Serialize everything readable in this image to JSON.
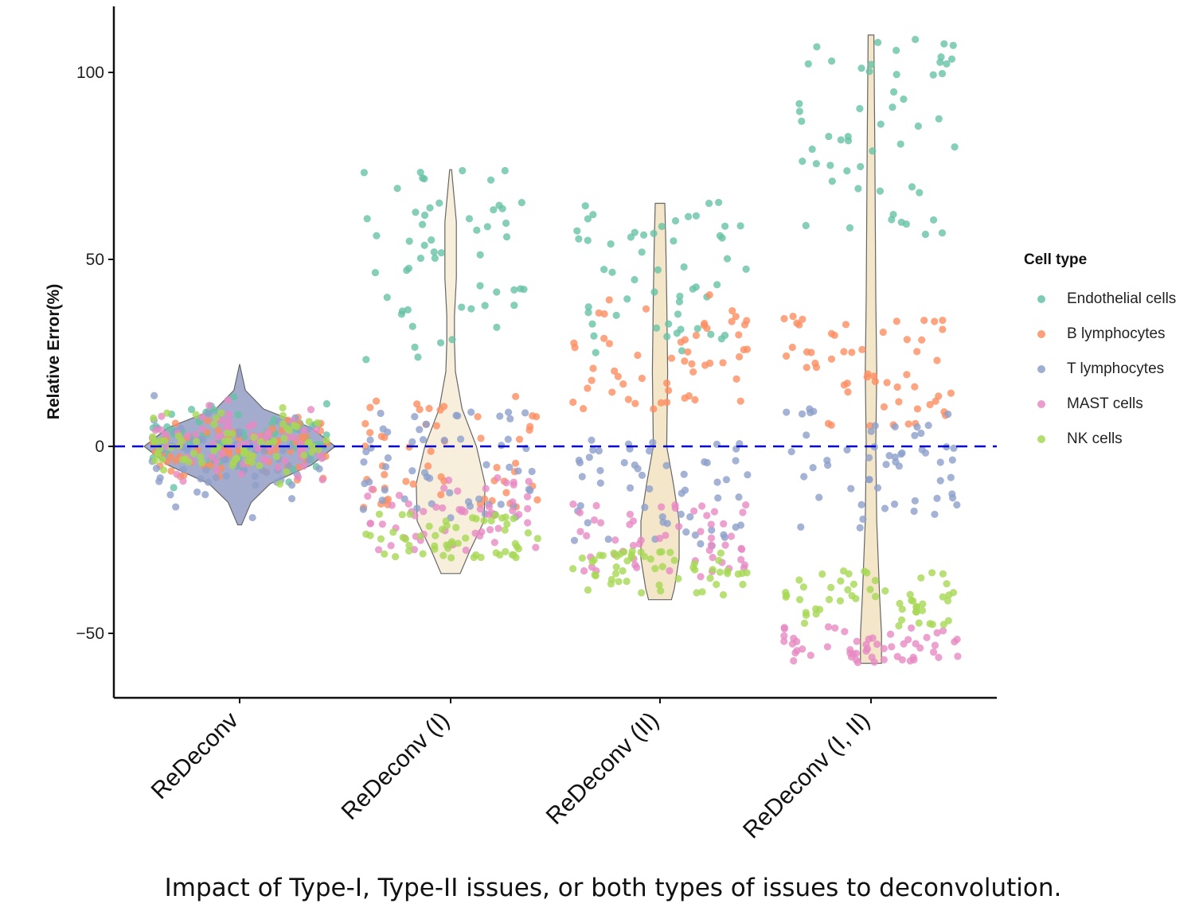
{
  "caption": "Impact of Type-I, Type-II issues, or both types of issues to deconvolution.",
  "chart_data": {
    "type": "violin+jitter",
    "title": "",
    "xlabel": "",
    "ylabel": "Relative Error(%)",
    "ylim": [
      -67,
      118
    ],
    "yticks": [
      -50,
      0,
      50,
      100
    ],
    "grid": false,
    "reference_line": {
      "y": 0,
      "style": "dashed",
      "color": "#0000cc"
    },
    "categories": [
      "ReDeconv",
      "ReDeconv (I)",
      "ReDeconv (II)",
      "ReDeconv (I, II)"
    ],
    "legend": {
      "title": "Cell type",
      "placement": "right",
      "entries": [
        {
          "name": "Endothelial cells",
          "color": "#66c2a5"
        },
        {
          "name": "B lymphocytes",
          "color": "#fc8d62"
        },
        {
          "name": "T lymphocytes",
          "color": "#8da0cb"
        },
        {
          "name": "MAST cells",
          "color": "#e78ac3"
        },
        {
          "name": "NK cells",
          "color": "#a6d854"
        }
      ]
    },
    "violins": [
      {
        "category": "ReDeconv",
        "fill": "#9aa3c8",
        "range": [
          -21,
          22
        ],
        "profile": [
          [
            22,
            0
          ],
          [
            15,
            0.06
          ],
          [
            10,
            0.25
          ],
          [
            5,
            0.75
          ],
          [
            0,
            1.0
          ],
          [
            -5,
            0.75
          ],
          [
            -10,
            0.32
          ],
          [
            -15,
            0.12
          ],
          [
            -21,
            0.02
          ]
        ]
      },
      {
        "category": "ReDeconv (I)",
        "fill": "#f6ecd8",
        "range": [
          -34,
          74
        ],
        "profile": [
          [
            74,
            0.01
          ],
          [
            60,
            0.06
          ],
          [
            45,
            0.06
          ],
          [
            35,
            0.04
          ],
          [
            28,
            0.04
          ],
          [
            20,
            0.05
          ],
          [
            10,
            0.12
          ],
          [
            0,
            0.27
          ],
          [
            -10,
            0.36
          ],
          [
            -20,
            0.35
          ],
          [
            -28,
            0.2
          ],
          [
            -34,
            0.1
          ]
        ]
      },
      {
        "category": "ReDeconv (II)",
        "fill": "#f3e3c2",
        "range": [
          -41,
          65
        ],
        "profile": [
          [
            65,
            0.05
          ],
          [
            55,
            0.06
          ],
          [
            40,
            0.07
          ],
          [
            20,
            0.08
          ],
          [
            0,
            0.07
          ],
          [
            -10,
            0.14
          ],
          [
            -20,
            0.2
          ],
          [
            -30,
            0.2
          ],
          [
            -38,
            0.15
          ],
          [
            -41,
            0.12
          ]
        ]
      },
      {
        "category": "ReDeconv (I, II)",
        "fill": "#f3e3c2",
        "range": [
          -58,
          110
        ],
        "profile": [
          [
            110,
            0.03
          ],
          [
            80,
            0.04
          ],
          [
            40,
            0.05
          ],
          [
            20,
            0.06
          ],
          [
            0,
            0.05
          ],
          [
            -20,
            0.06
          ],
          [
            -40,
            0.09
          ],
          [
            -50,
            0.11
          ],
          [
            -58,
            0.11
          ]
        ]
      }
    ],
    "point_ranges": {
      "ReDeconv": {
        "Endothelial cells": [
          -15,
          19
        ],
        "B lymphocytes": [
          -13,
          12
        ],
        "T lymphocytes": [
          -21,
          15
        ],
        "MAST cells": [
          -12,
          14
        ],
        "NK cells": [
          -12,
          13
        ]
      },
      "ReDeconv (I)": {
        "Endothelial cells": [
          23,
          74
        ],
        "B lymphocytes": [
          -20,
          14
        ],
        "T lymphocytes": [
          -20,
          10
        ],
        "MAST cells": [
          -28,
          -8
        ],
        "NK cells": [
          -30,
          -18
        ]
      },
      "ReDeconv (II)": {
        "Endothelial cells": [
          25,
          66
        ],
        "B lymphocytes": [
          10,
          41
        ],
        "T lymphocytes": [
          -27,
          2
        ],
        "MAST cells": [
          -35,
          -15
        ],
        "NK cells": [
          -40,
          -28
        ]
      },
      "ReDeconv (I, II)": {
        "Endothelial cells": [
          55,
          110
        ],
        "B lymphocytes": [
          5,
          35
        ],
        "T lymphocytes": [
          -22,
          10
        ],
        "MAST cells": [
          -58,
          -48
        ],
        "NK cells": [
          -48,
          -33
        ]
      }
    }
  }
}
